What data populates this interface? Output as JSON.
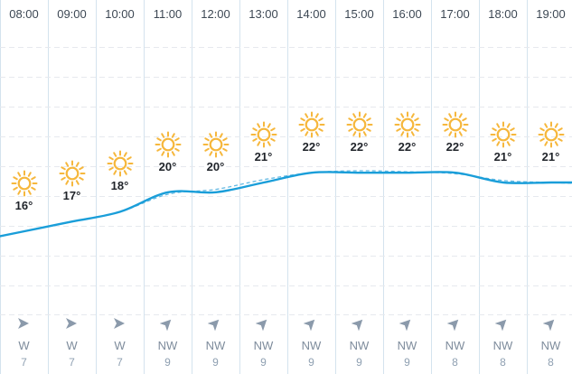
{
  "colors": {
    "sun": "#f6b73c",
    "line_solid": "#1a9ed9",
    "line_dashed": "#63b9e3",
    "grid": "#e6e9ee",
    "col_divider": "#d4e3ee",
    "wind_arrow": "#8b9aab"
  },
  "hours": [
    {
      "time": "08:00",
      "icon": "sun-icon",
      "temp": "16°",
      "wind_dir": "W",
      "wind_speed": "7"
    },
    {
      "time": "09:00",
      "icon": "sun-icon",
      "temp": "17°",
      "wind_dir": "W",
      "wind_speed": "7"
    },
    {
      "time": "10:00",
      "icon": "sun-icon",
      "temp": "18°",
      "wind_dir": "W",
      "wind_speed": "7"
    },
    {
      "time": "11:00",
      "icon": "sun-icon",
      "temp": "20°",
      "wind_dir": "NW",
      "wind_speed": "9"
    },
    {
      "time": "12:00",
      "icon": "sun-icon",
      "temp": "20°",
      "wind_dir": "NW",
      "wind_speed": "9"
    },
    {
      "time": "13:00",
      "icon": "sun-icon",
      "temp": "21°",
      "wind_dir": "NW",
      "wind_speed": "9"
    },
    {
      "time": "14:00",
      "icon": "sun-icon",
      "temp": "22°",
      "wind_dir": "NW",
      "wind_speed": "9"
    },
    {
      "time": "15:00",
      "icon": "sun-icon",
      "temp": "22°",
      "wind_dir": "NW",
      "wind_speed": "9"
    },
    {
      "time": "16:00",
      "icon": "sun-icon",
      "temp": "22°",
      "wind_dir": "NW",
      "wind_speed": "9"
    },
    {
      "time": "17:00",
      "icon": "sun-icon",
      "temp": "22°",
      "wind_dir": "NW",
      "wind_speed": "8"
    },
    {
      "time": "18:00",
      "icon": "sun-icon",
      "temp": "21°",
      "wind_dir": "NW",
      "wind_speed": "8"
    },
    {
      "time": "19:00",
      "icon": "sun-icon",
      "temp": "21°",
      "wind_dir": "NW",
      "wind_speed": "8"
    }
  ],
  "chart_data": {
    "type": "line",
    "title": "",
    "xlabel": "",
    "ylabel": "",
    "categories": [
      "08:00",
      "09:00",
      "10:00",
      "11:00",
      "12:00",
      "13:00",
      "14:00",
      "15:00",
      "16:00",
      "17:00",
      "18:00",
      "19:00"
    ],
    "series": [
      {
        "values": [
          16,
          17,
          18,
          20,
          20,
          21,
          22,
          22,
          22,
          22,
          21,
          21
        ]
      },
      {
        "values": [
          16,
          17,
          18,
          19.8,
          20.3,
          21.3,
          22,
          22.2,
          22.1,
          21.9,
          21.2,
          21
        ]
      }
    ],
    "grid": true
  }
}
